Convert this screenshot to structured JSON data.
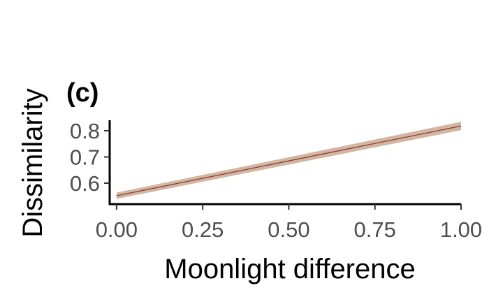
{
  "chart_data": {
    "type": "line",
    "panel_label": "(c)",
    "title": "",
    "xlabel": "Moonlight difference",
    "ylabel": "Dissimilarity",
    "xlim": [
      -0.02,
      1.0
    ],
    "ylim": [
      0.52,
      0.84
    ],
    "x_ticks": [
      0.0,
      0.25,
      0.5,
      0.75,
      1.0
    ],
    "x_tick_labels": [
      "0.00",
      "0.25",
      "0.50",
      "0.75",
      "1.00"
    ],
    "y_ticks": [
      0.6,
      0.7,
      0.8
    ],
    "y_tick_labels": [
      "0.6",
      "0.7",
      "0.8"
    ],
    "grid": false,
    "legend": "none",
    "series": [
      {
        "x": [
          0.0,
          1.0
        ],
        "y": [
          0.552,
          0.818
        ],
        "ci_lower": [
          0.54,
          0.802
        ],
        "ci_upper": [
          0.564,
          0.834
        ],
        "line_color": "#8b3a2e",
        "band_color": "#c9a993"
      }
    ]
  }
}
